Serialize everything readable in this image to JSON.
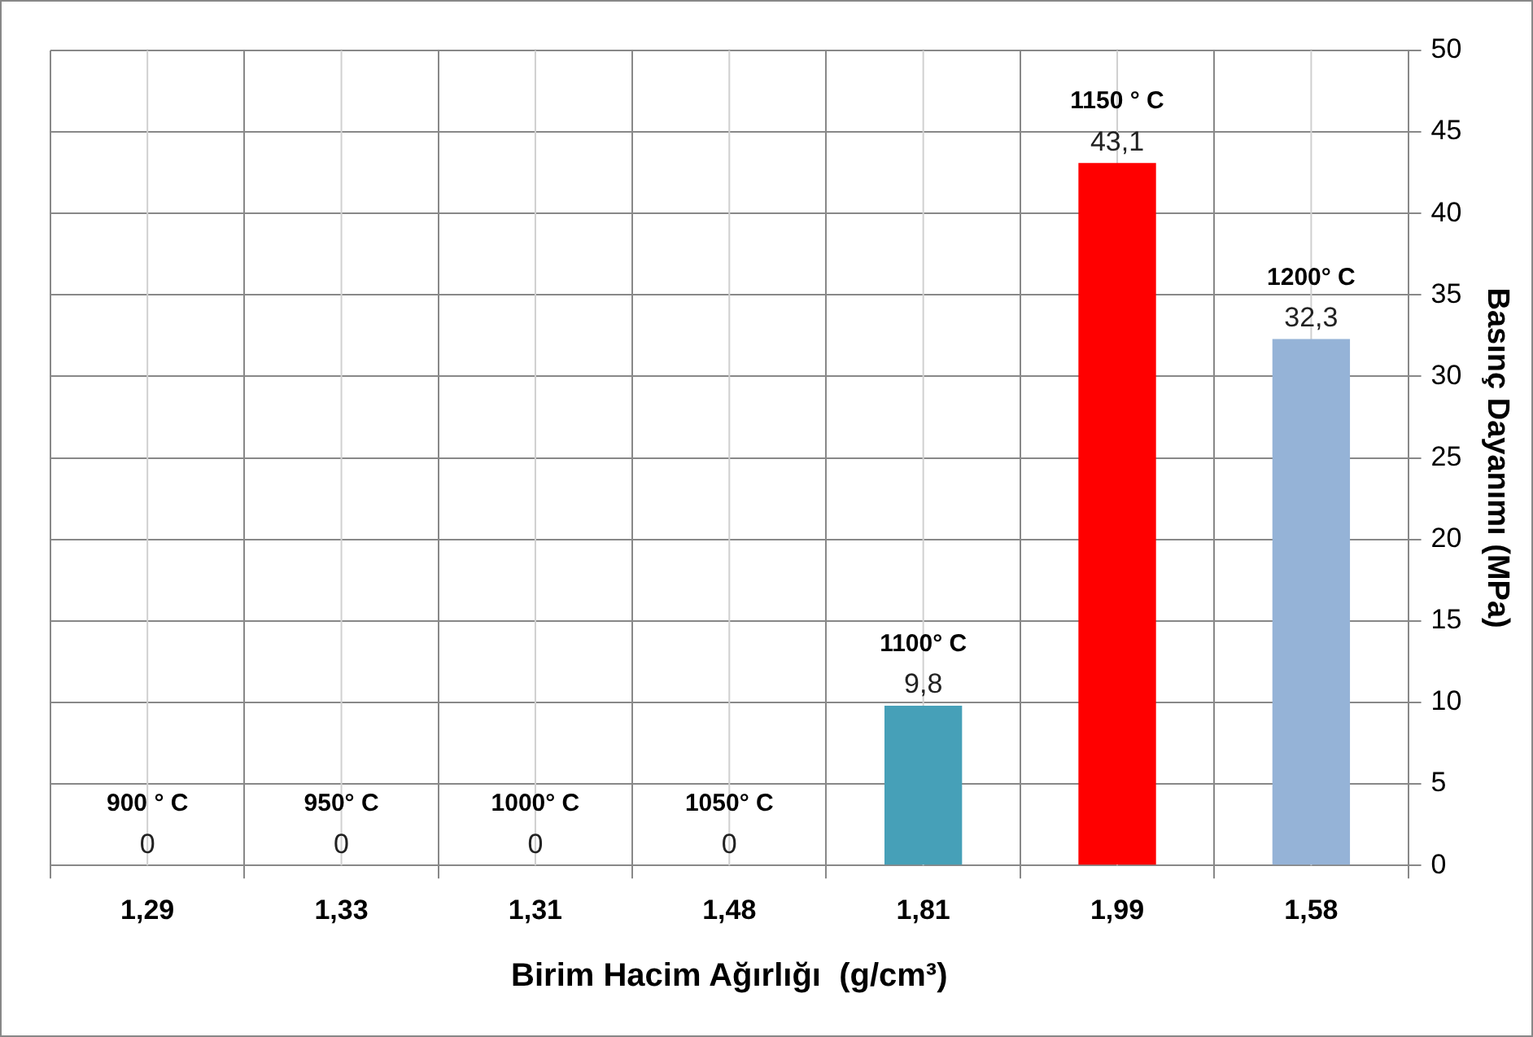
{
  "chart_data": {
    "type": "bar",
    "xlabel": "Birim Hacim Ağırlığı  (g/cm³)",
    "ylabel": "Basınç Dayanımı (MPa)",
    "categories": [
      "1,29",
      "1,33",
      "1,31",
      "1,48",
      "1,81",
      "1,99",
      "1,58"
    ],
    "values": [
      0,
      0,
      0,
      0,
      9.8,
      43.1,
      32.3
    ],
    "colors": [
      "#46a0b8",
      "#46a0b8",
      "#46a0b8",
      "#46a0b8",
      "#46a0b8",
      "#ff0000",
      "#95b3d7"
    ],
    "value_labels": [
      "0",
      "0",
      "0",
      "0",
      "9,8",
      "43,1",
      "32,3"
    ],
    "ylim": [
      0,
      50
    ],
    "yticks": [
      0,
      5,
      10,
      15,
      20,
      25,
      30,
      35,
      40,
      45,
      50
    ],
    "grid": true,
    "legend": false,
    "annotations": [
      {
        "text": "900 ° C",
        "x": "1,29",
        "y": 0
      },
      {
        "text": "950° C",
        "x": "1,33",
        "y": 0
      },
      {
        "text": "1000° C",
        "x": "1,31",
        "y": 0
      },
      {
        "text": "1050° C",
        "x": "1,48",
        "y": 0
      },
      {
        "text": "1100° C",
        "x": "1,81",
        "y": 9.8
      },
      {
        "text": "1150 ° C",
        "x": "1,99",
        "y": 43.1
      },
      {
        "text": "1200° C",
        "x": "1,58",
        "y": 32.3
      }
    ]
  }
}
